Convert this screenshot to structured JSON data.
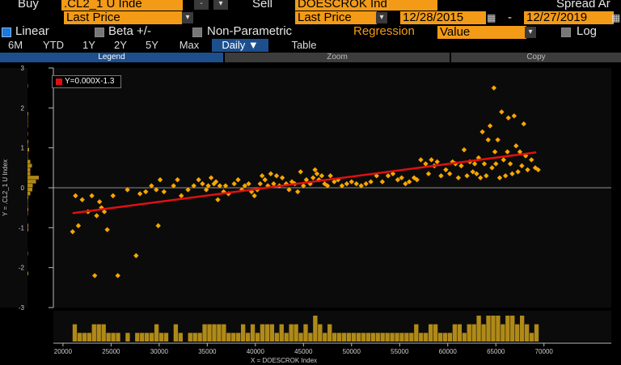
{
  "row1": {
    "buy_label": "Buy",
    "buy_security": ".CL2_1 U Inde",
    "buy_dropdown_minus": "-",
    "sell_label": "Sell",
    "sell_security": "DOESCROK Ind",
    "spread_label": "Spread Ar"
  },
  "row2": {
    "buy_field": "Last Price",
    "sell_field": "Last Price",
    "start_date": "12/28/2015",
    "date_sep": "-",
    "end_date": "12/27/2019"
  },
  "row3": {
    "linear_label": "Linear",
    "linear_checked": true,
    "beta_label": "Beta +/-",
    "nonparam_label": "Non-Parametric",
    "regression_label": "Regression",
    "regression_value": "Value",
    "log_label": "Log"
  },
  "tabs": {
    "items": [
      "6M",
      "YTD",
      "1Y",
      "2Y",
      "5Y",
      "Max",
      "Daily ▼",
      "Table"
    ],
    "selected": "Daily ▼"
  },
  "toolbar": {
    "legend": "Legend",
    "zoom": "Zoom",
    "copy": "Copy"
  },
  "legend": {
    "equation": "Y=0.000X-1.3",
    "color": "#e01010"
  },
  "colors": {
    "point": "#f7a600",
    "accent": "#f39b17",
    "regression": "#e01010"
  },
  "chart_data": {
    "type": "scatter",
    "xlabel": "X = DOESCROK Index",
    "ylabel": "Y = .CL2_1 U Index",
    "xlim": [
      19000,
      77000
    ],
    "ylim": [
      -3,
      3
    ],
    "xticks": [
      "20000",
      "25000",
      "30000",
      "35000",
      "40000",
      "45000",
      "50000",
      "55000",
      "60000",
      "65000",
      "70000"
    ],
    "yticks": [
      "3",
      "2",
      "1",
      "0",
      "-1",
      "-2",
      "-3"
    ],
    "regression": {
      "slope": 3.16e-05,
      "intercept": -1.3,
      "x_range": [
        21000,
        69200
      ]
    },
    "points": [
      [
        21000,
        -1.1
      ],
      [
        21300,
        -0.2
      ],
      [
        21600,
        -0.95
      ],
      [
        22000,
        -0.3
      ],
      [
        22600,
        -0.6
      ],
      [
        23000,
        -0.2
      ],
      [
        23300,
        -2.2
      ],
      [
        23500,
        -0.7
      ],
      [
        23800,
        -0.35
      ],
      [
        24000,
        -0.5
      ],
      [
        24300,
        -0.6
      ],
      [
        24600,
        -1.05
      ],
      [
        25200,
        -0.2
      ],
      [
        25700,
        -2.2
      ],
      [
        26700,
        -0.05
      ],
      [
        27600,
        -1.7
      ],
      [
        28000,
        -0.15
      ],
      [
        28600,
        -0.1
      ],
      [
        29200,
        0.05
      ],
      [
        29700,
        -0.05
      ],
      [
        29900,
        -0.95
      ],
      [
        30100,
        0.2
      ],
      [
        30500,
        -0.1
      ],
      [
        31500,
        0.05
      ],
      [
        31900,
        0.2
      ],
      [
        32300,
        -0.2
      ],
      [
        33000,
        -0.05
      ],
      [
        33600,
        0.05
      ],
      [
        34100,
        0.2
      ],
      [
        34500,
        0.1
      ],
      [
        34900,
        -0.05
      ],
      [
        35100,
        0.05
      ],
      [
        35400,
        0.25
      ],
      [
        35700,
        0.1
      ],
      [
        35900,
        0.15
      ],
      [
        36100,
        -0.3
      ],
      [
        36300,
        0.05
      ],
      [
        36700,
        -0.1
      ],
      [
        36900,
        0.05
      ],
      [
        37200,
        -0.15
      ],
      [
        37800,
        0.1
      ],
      [
        38200,
        0.2
      ],
      [
        38600,
        -0.05
      ],
      [
        38900,
        0.05
      ],
      [
        39300,
        0.1
      ],
      [
        39600,
        -0.1
      ],
      [
        39900,
        -0.2
      ],
      [
        40200,
        -0.05
      ],
      [
        40500,
        0.1
      ],
      [
        40700,
        0.3
      ],
      [
        41000,
        0.2
      ],
      [
        41300,
        0.05
      ],
      [
        41600,
        0.35
      ],
      [
        41900,
        0.1
      ],
      [
        42200,
        0.3
      ],
      [
        42500,
        0.05
      ],
      [
        42800,
        0.25
      ],
      [
        43200,
        0.1
      ],
      [
        43500,
        -0.05
      ],
      [
        43800,
        0.15
      ],
      [
        44100,
        0.1
      ],
      [
        44400,
        -0.1
      ],
      [
        44700,
        0.4
      ],
      [
        45000,
        0.05
      ],
      [
        45300,
        0.2
      ],
      [
        45700,
        0.1
      ],
      [
        46000,
        0.25
      ],
      [
        46200,
        0.45
      ],
      [
        46400,
        0.35
      ],
      [
        46600,
        0.2
      ],
      [
        46900,
        0.3
      ],
      [
        47200,
        0.1
      ],
      [
        47500,
        0.05
      ],
      [
        47800,
        0.3
      ],
      [
        48200,
        0.15
      ],
      [
        48600,
        0.2
      ],
      [
        49000,
        0.05
      ],
      [
        49500,
        0.1
      ],
      [
        50000,
        0.15
      ],
      [
        50500,
        0.1
      ],
      [
        51000,
        0.05
      ],
      [
        51500,
        0.1
      ],
      [
        52000,
        0.15
      ],
      [
        52600,
        0.3
      ],
      [
        53200,
        0.15
      ],
      [
        53800,
        0.3
      ],
      [
        54300,
        0.35
      ],
      [
        54800,
        0.2
      ],
      [
        55200,
        0.25
      ],
      [
        55600,
        0.1
      ],
      [
        56000,
        0.15
      ],
      [
        56500,
        0.25
      ],
      [
        56800,
        0.2
      ],
      [
        57200,
        0.7
      ],
      [
        57700,
        0.6
      ],
      [
        58000,
        0.35
      ],
      [
        58300,
        0.7
      ],
      [
        58600,
        0.55
      ],
      [
        58900,
        0.65
      ],
      [
        59300,
        0.3
      ],
      [
        59800,
        0.45
      ],
      [
        60200,
        0.35
      ],
      [
        60500,
        0.65
      ],
      [
        60800,
        0.6
      ],
      [
        61100,
        0.25
      ],
      [
        61400,
        0.55
      ],
      [
        61700,
        0.95
      ],
      [
        62000,
        0.3
      ],
      [
        62300,
        0.65
      ],
      [
        62600,
        0.4
      ],
      [
        62800,
        0.6
      ],
      [
        63000,
        0.35
      ],
      [
        63200,
        0.75
      ],
      [
        63400,
        0.25
      ],
      [
        63600,
        1.4
      ],
      [
        63800,
        0.6
      ],
      [
        64000,
        0.3
      ],
      [
        64200,
        1.2
      ],
      [
        64400,
        1.55
      ],
      [
        64600,
        0.5
      ],
      [
        64800,
        2.5
      ],
      [
        64900,
        0.9
      ],
      [
        65000,
        0.6
      ],
      [
        65200,
        1.2
      ],
      [
        65400,
        0.25
      ],
      [
        65600,
        1.9
      ],
      [
        65800,
        0.7
      ],
      [
        66000,
        0.3
      ],
      [
        66200,
        0.9
      ],
      [
        66300,
        1.75
      ],
      [
        66500,
        0.6
      ],
      [
        66700,
        0.35
      ],
      [
        66900,
        1.8
      ],
      [
        67100,
        1.05
      ],
      [
        67300,
        0.4
      ],
      [
        67500,
        0.9
      ],
      [
        67700,
        0.55
      ],
      [
        67900,
        1.6
      ],
      [
        68100,
        0.8
      ],
      [
        68300,
        0.45
      ],
      [
        68700,
        0.7
      ],
      [
        69100,
        0.5
      ],
      [
        69400,
        0.45
      ]
    ]
  }
}
